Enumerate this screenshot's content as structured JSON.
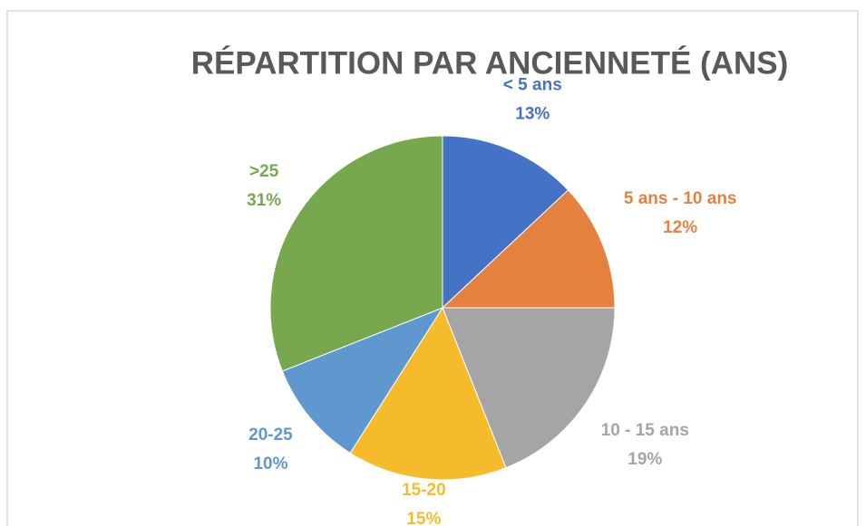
{
  "chart_data": {
    "type": "pie",
    "title": "RÉPARTITION PAR ANCIENNETÉ (ANS)",
    "categories": [
      "< 5 ans",
      "5 ans - 10 ans",
      "10 - 15 ans",
      "15-20",
      "20-25",
      ">25"
    ],
    "values": [
      13,
      12,
      19,
      15,
      10,
      31
    ],
    "value_labels": [
      "13%",
      "12%",
      "19%",
      "15%",
      "10%",
      "31%"
    ],
    "colors": [
      "#4472c4",
      "#e5813e",
      "#a5a5a5",
      "#f5bb2b",
      "#5f98cf",
      "#77a84e"
    ]
  }
}
